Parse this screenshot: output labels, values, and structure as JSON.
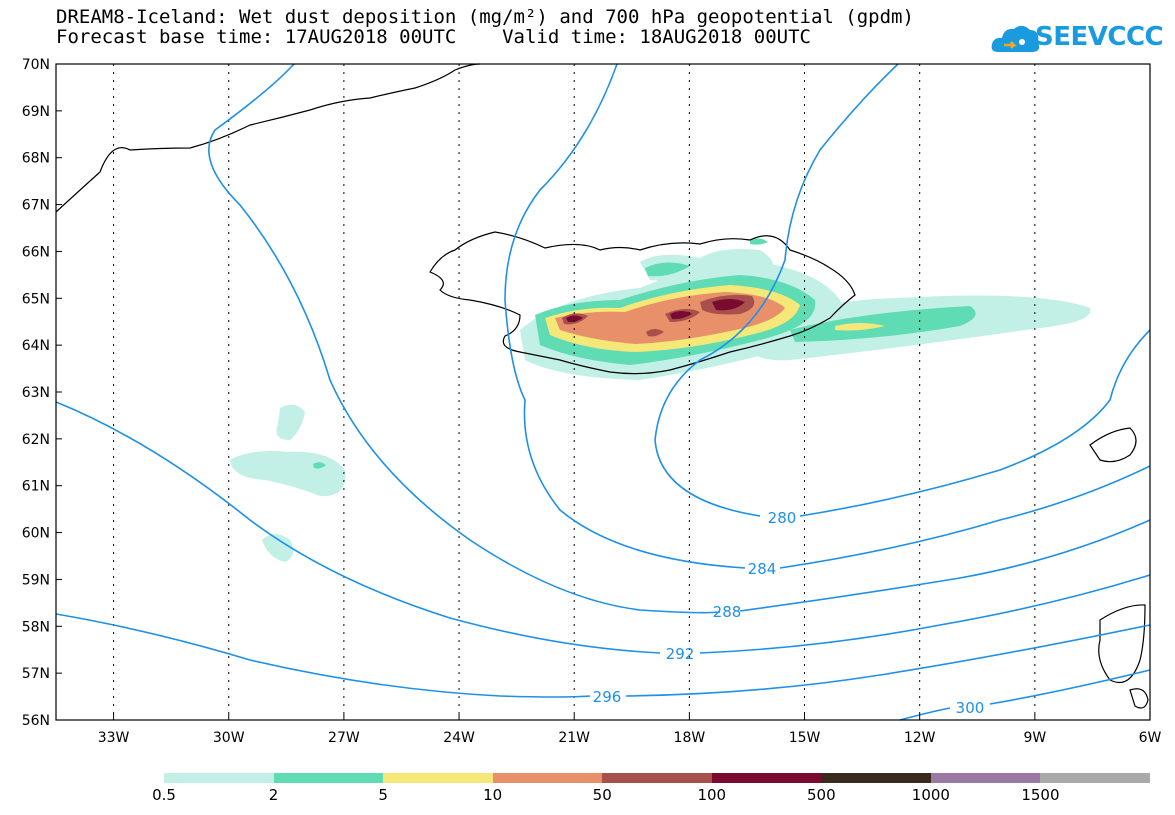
{
  "header": {
    "title_line1": "DREAM8-Iceland: Wet dust deposition (mg/m²) and 700 hPa geopotential (gpdm)",
    "title_line2": "Forecast base time: 17AUG2018 00UTC    Valid time: 18AUG2018 00UTC"
  },
  "logo": {
    "text": "SEEVCCC",
    "color": "#1a9be0"
  },
  "map": {
    "lat_labels": [
      "70N",
      "69N",
      "68N",
      "67N",
      "66N",
      "65N",
      "64N",
      "63N",
      "62N",
      "61N",
      "60N",
      "59N",
      "58N",
      "57N",
      "56N"
    ],
    "lon_labels": [
      "33W",
      "30W",
      "27W",
      "24W",
      "21W",
      "18W",
      "15W",
      "12W",
      "9W",
      "6W"
    ],
    "lat_range": [
      56,
      70
    ],
    "lon_range": [
      -34.5,
      -6
    ],
    "grid": true,
    "contour_color": "#1e90e8",
    "contour_labels": [
      "280",
      "284",
      "288",
      "292",
      "296",
      "300"
    ]
  },
  "legend": {
    "labels": [
      "0.5",
      "2",
      "5",
      "10",
      "50",
      "100",
      "500",
      "1000",
      "1500"
    ],
    "colors": [
      "#c2f0e6",
      "#5fdcb4",
      "#f5e878",
      "#e8906a",
      "#a8504c",
      "#7a0a30",
      "#3a2a1e",
      "#9a78a4",
      "#a9a9a9"
    ]
  }
}
